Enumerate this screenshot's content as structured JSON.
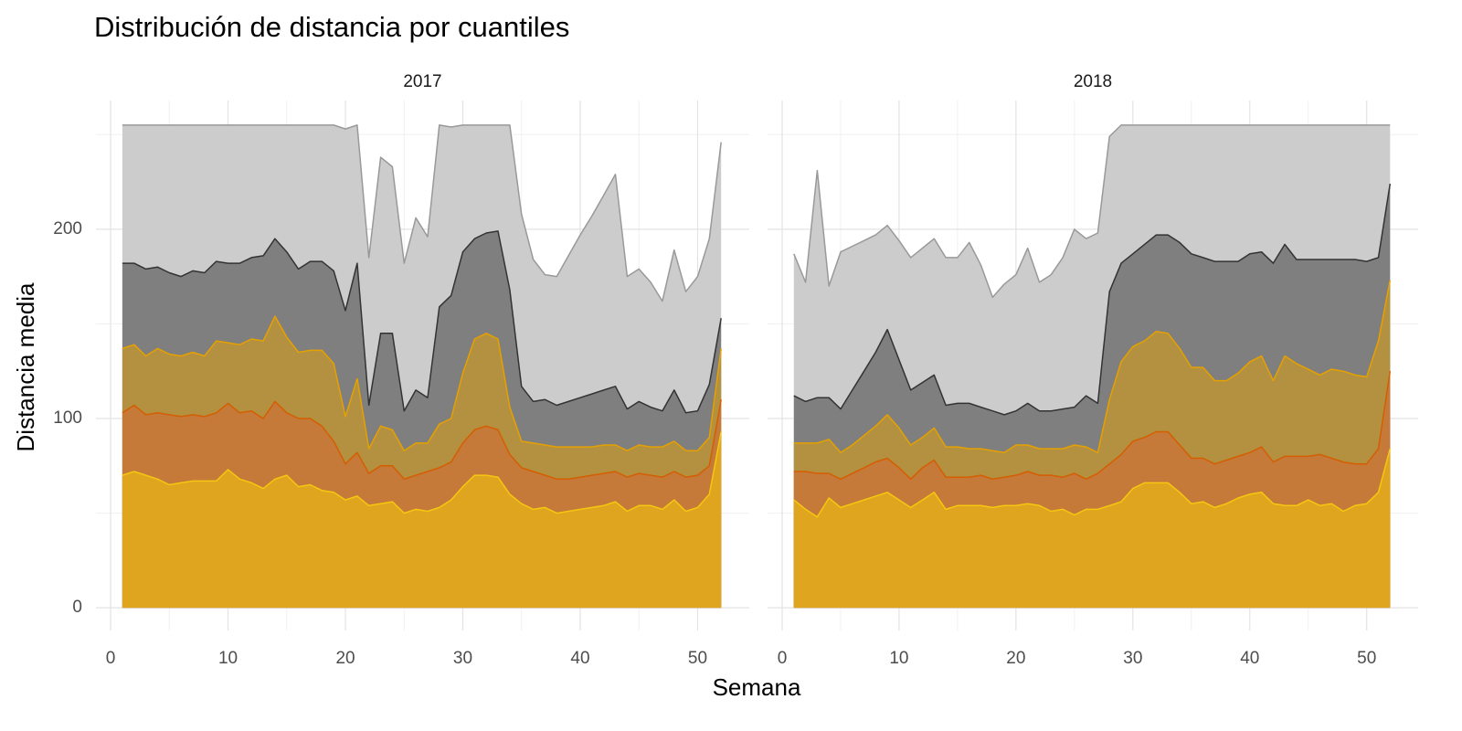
{
  "chart_data": {
    "type": "area",
    "title": "Distribución de distancia por cuantiles",
    "xlabel": "Semana",
    "ylabel": "Distancia media",
    "xlim": [
      -1.25,
      54.4
    ],
    "ylim": [
      -12,
      268
    ],
    "xticks": [
      0,
      10,
      20,
      30,
      40,
      50
    ],
    "yticks": [
      0,
      100,
      200
    ],
    "xminor": [
      5,
      15,
      25,
      35,
      45
    ],
    "yminor": [
      50,
      150,
      250
    ],
    "grid": true,
    "panels": [
      {
        "title": "2017",
        "x": [
          1,
          2,
          3,
          4,
          5,
          6,
          7,
          8,
          9,
          10,
          11,
          12,
          13,
          14,
          15,
          16,
          17,
          18,
          19,
          20,
          21,
          22,
          23,
          24,
          25,
          26,
          27,
          28,
          29,
          30,
          31,
          32,
          33,
          34,
          35,
          36,
          37,
          38,
          39,
          40,
          41,
          42,
          43,
          44,
          45,
          46,
          47,
          48,
          49,
          50,
          51,
          52
        ],
        "series": [
          {
            "color": "#cccccc",
            "line_color": "#999999",
            "values": [
              255,
              255,
              255,
              255,
              255,
              255,
              255,
              255,
              255,
              255,
              255,
              255,
              255,
              255,
              255,
              255,
              255,
              255,
              255,
              253,
              255,
              185,
              238,
              233,
              182,
              206,
              196,
              255,
              254,
              255,
              255,
              255,
              255,
              255,
              208,
              184,
              176,
              175,
              186,
              197,
              207,
              218,
              229,
              175,
              179,
              172,
              162,
              189,
              167,
              175,
              195,
              246
            ]
          },
          {
            "color": "#7f7f7f",
            "line_color": "#333333",
            "values": [
              182,
              182,
              179,
              180,
              177,
              175,
              178,
              177,
              183,
              182,
              182,
              185,
              186,
              195,
              188,
              179,
              183,
              183,
              178,
              157,
              182,
              107,
              145,
              145,
              104,
              115,
              111,
              159,
              165,
              188,
              195,
              198,
              199,
              168,
              117,
              109,
              110,
              107,
              109,
              111,
              113,
              115,
              117,
              105,
              109,
              106,
              104,
              115,
              103,
              104,
              118,
              153
            ]
          },
          {
            "color": "#b39140",
            "line_color": "#e6a100",
            "values": [
              137,
              139,
              133,
              137,
              134,
              133,
              135,
              133,
              141,
              140,
              139,
              142,
              141,
              154,
              143,
              135,
              136,
              136,
              129,
              101,
              121,
              84,
              96,
              94,
              83,
              87,
              87,
              97,
              100,
              124,
              142,
              145,
              142,
              106,
              88,
              87,
              86,
              85,
              85,
              85,
              85,
              86,
              86,
              83,
              86,
              85,
              85,
              88,
              83,
              83,
              90,
              137
            ]
          },
          {
            "color": "#c57a3a",
            "line_color": "#d55e00",
            "values": [
              103,
              107,
              102,
              103,
              102,
              101,
              102,
              101,
              103,
              108,
              103,
              104,
              100,
              109,
              103,
              100,
              100,
              96,
              88,
              76,
              82,
              71,
              75,
              75,
              68,
              70,
              72,
              74,
              77,
              87,
              94,
              96,
              94,
              81,
              74,
              72,
              70,
              68,
              68,
              69,
              70,
              71,
              72,
              69,
              71,
              70,
              69,
              72,
              69,
              70,
              75,
              110
            ]
          },
          {
            "color": "#e0a51e",
            "line_color": "#f5c710",
            "values": [
              70,
              72,
              70,
              68,
              65,
              66,
              67,
              67,
              67,
              73,
              68,
              66,
              63,
              68,
              70,
              64,
              65,
              62,
              61,
              57,
              59,
              54,
              55,
              56,
              50,
              52,
              51,
              53,
              57,
              64,
              70,
              70,
              69,
              60,
              55,
              52,
              53,
              50,
              51,
              52,
              53,
              54,
              56,
              51,
              54,
              54,
              52,
              57,
              51,
              53,
              60,
              93
            ]
          }
        ]
      },
      {
        "title": "2018",
        "x": [
          1,
          2,
          3,
          4,
          5,
          6,
          7,
          8,
          9,
          10,
          11,
          12,
          13,
          14,
          15,
          16,
          17,
          18,
          19,
          20,
          21,
          22,
          23,
          24,
          25,
          26,
          27,
          28,
          29,
          30,
          31,
          32,
          33,
          34,
          35,
          36,
          37,
          38,
          39,
          40,
          41,
          42,
          43,
          44,
          45,
          46,
          47,
          48,
          49,
          50,
          51,
          52
        ],
        "series": [
          {
            "color": "#cccccc",
            "line_color": "#999999",
            "values": [
              187,
              172,
              231,
              170,
              188,
              191,
              194,
              197,
              202,
              194,
              185,
              190,
              195,
              185,
              185,
              193,
              181,
              164,
              171,
              176,
              190,
              172,
              176,
              185,
              200,
              195,
              198,
              249,
              255,
              255,
              255,
              255,
              255,
              255,
              255,
              255,
              255,
              255,
              255,
              255,
              255,
              255,
              255,
              255,
              255,
              255,
              255,
              255,
              255,
              255,
              255,
              255
            ]
          },
          {
            "color": "#7f7f7f",
            "line_color": "#333333",
            "values": [
              112,
              109,
              111,
              111,
              105,
              115,
              125,
              135,
              147,
              131,
              115,
              119,
              123,
              107,
              108,
              108,
              106,
              104,
              102,
              104,
              108,
              104,
              104,
              105,
              106,
              112,
              108,
              167,
              182,
              187,
              192,
              197,
              197,
              193,
              187,
              185,
              183,
              183,
              183,
              187,
              188,
              182,
              192,
              184,
              184,
              184,
              184,
              184,
              184,
              183,
              185,
              224
            ]
          },
          {
            "color": "#b39140",
            "line_color": "#e6a100",
            "values": [
              87,
              87,
              87,
              89,
              82,
              86,
              91,
              96,
              102,
              95,
              86,
              90,
              95,
              85,
              85,
              84,
              84,
              83,
              82,
              86,
              86,
              84,
              84,
              84,
              86,
              85,
              82,
              110,
              130,
              138,
              141,
              146,
              145,
              137,
              127,
              127,
              120,
              120,
              124,
              130,
              133,
              120,
              133,
              129,
              126,
              123,
              126,
              125,
              123,
              122,
              141,
              173
            ]
          },
          {
            "color": "#c57a3a",
            "line_color": "#d55e00",
            "values": [
              72,
              72,
              71,
              71,
              68,
              71,
              74,
              77,
              79,
              74,
              68,
              74,
              78,
              69,
              69,
              69,
              70,
              68,
              69,
              70,
              72,
              70,
              70,
              69,
              71,
              68,
              71,
              76,
              81,
              88,
              90,
              93,
              93,
              86,
              79,
              79,
              76,
              78,
              80,
              82,
              85,
              77,
              80,
              80,
              80,
              81,
              79,
              77,
              76,
              76,
              84,
              125
            ]
          },
          {
            "color": "#e0a51e",
            "line_color": "#f5c710",
            "values": [
              57,
              52,
              48,
              58,
              53,
              55,
              57,
              59,
              61,
              57,
              53,
              57,
              61,
              52,
              54,
              54,
              54,
              53,
              54,
              54,
              55,
              54,
              51,
              52,
              49,
              52,
              52,
              54,
              56,
              63,
              66,
              66,
              66,
              61,
              55,
              56,
              53,
              55,
              58,
              60,
              61,
              55,
              54,
              54,
              57,
              54,
              55,
              51,
              54,
              55,
              61,
              84
            ]
          }
        ]
      }
    ]
  }
}
